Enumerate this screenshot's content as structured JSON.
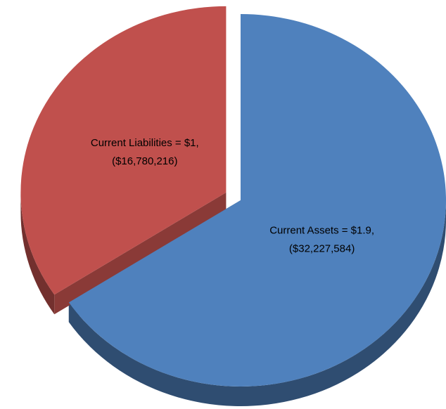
{
  "chart_data": {
    "type": "pie",
    "categories": [
      "Current Assets = $1.9,",
      "Current Liabilities = $1,"
    ],
    "values": [
      32227584,
      16780216
    ],
    "value_labels": [
      "($32,227,584)",
      "($16,780,216)"
    ],
    "colors": [
      "#4f81bd",
      "#c0504d"
    ],
    "exploded": [
      false,
      true
    ]
  }
}
